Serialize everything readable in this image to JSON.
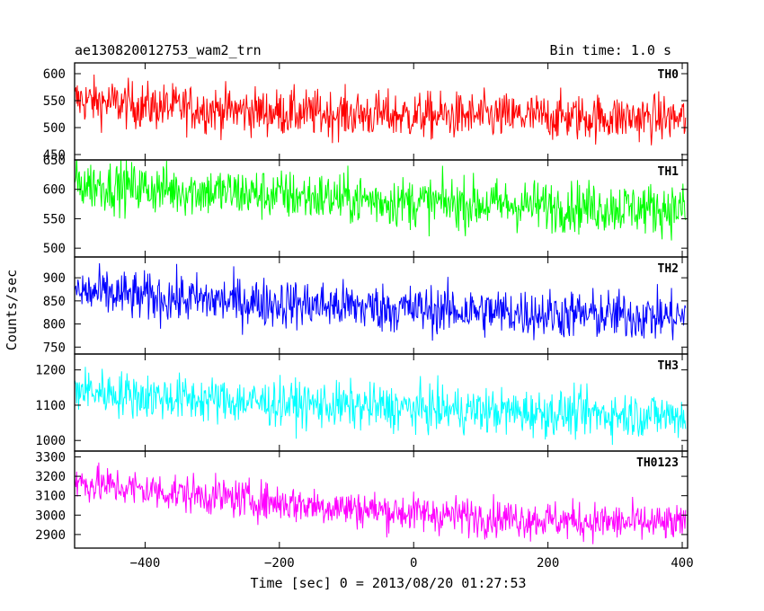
{
  "header": {
    "source_name": "ae130820012753_wam2_trn",
    "bin_time": "Bin time: 1.0 s"
  },
  "chart_data": {
    "type": "line",
    "xlabel": "Time [sec] 0 = 2013/08/20 01:27:53",
    "ylabel": "Counts/sec",
    "xlim": [
      -505,
      408
    ],
    "x_ticks": [
      -400,
      -200,
      0,
      200,
      400
    ],
    "x_data_range": [
      -505,
      405
    ],
    "bin_time_s": 1.0,
    "grid": false,
    "panels": [
      {
        "name": "TH0",
        "color": "#ff0000",
        "ylim": [
          440,
          620
        ],
        "y_ticks": [
          450,
          500,
          550,
          600
        ],
        "trend": [
          [
            -505,
            552
          ],
          [
            -400,
            540
          ],
          [
            -200,
            528
          ],
          [
            0,
            522
          ],
          [
            200,
            520
          ],
          [
            405,
            517
          ]
        ],
        "noise": 22
      },
      {
        "name": "TH1",
        "color": "#00ff00",
        "ylim": [
          485,
          650
        ],
        "y_ticks": [
          500,
          550,
          600,
          650
        ],
        "trend": [
          [
            -505,
            610
          ],
          [
            -400,
            602
          ],
          [
            -200,
            590
          ],
          [
            0,
            578
          ],
          [
            200,
            572
          ],
          [
            405,
            566
          ]
        ],
        "noise": 22
      },
      {
        "name": "TH2",
        "color": "#0000ff",
        "ylim": [
          735,
          945
        ],
        "y_ticks": [
          750,
          800,
          850,
          900
        ],
        "trend": [
          [
            -505,
            870
          ],
          [
            -400,
            858
          ],
          [
            -200,
            845
          ],
          [
            0,
            832
          ],
          [
            200,
            822
          ],
          [
            405,
            815
          ]
        ],
        "noise": 27
      },
      {
        "name": "TH3",
        "color": "#00ffff",
        "ylim": [
          970,
          1245
        ],
        "y_ticks": [
          1000,
          1100,
          1200
        ],
        "trend": [
          [
            -505,
            1145
          ],
          [
            -400,
            1125
          ],
          [
            -200,
            1105
          ],
          [
            0,
            1090
          ],
          [
            200,
            1078
          ],
          [
            405,
            1070
          ]
        ],
        "noise": 33
      },
      {
        "name": "TH0123",
        "color": "#ff00ff",
        "ylim": [
          2830,
          3330
        ],
        "y_ticks": [
          2900,
          3000,
          3100,
          3200,
          3300
        ],
        "trend": [
          [
            -505,
            3170
          ],
          [
            -400,
            3130
          ],
          [
            -200,
            3065
          ],
          [
            0,
            3010
          ],
          [
            200,
            2975
          ],
          [
            405,
            2950
          ]
        ],
        "noise": 50
      }
    ]
  }
}
